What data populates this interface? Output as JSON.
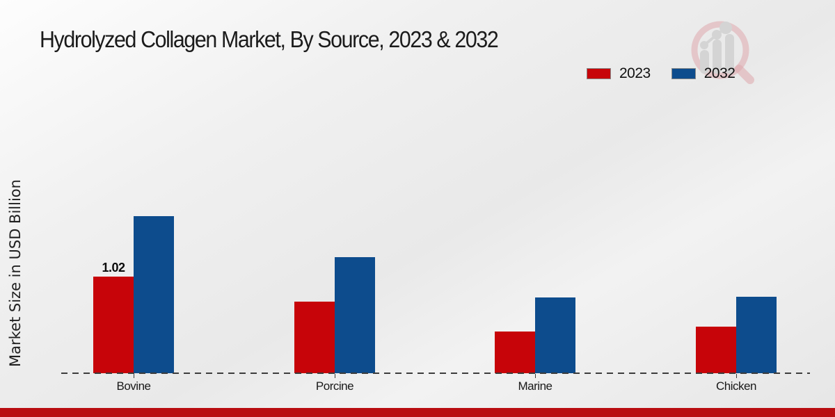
{
  "title": "Hydrolyzed Collagen Market, By Source, 2023 & 2032",
  "y_axis_label": "Market Size in USD Billion",
  "legend": {
    "items": [
      {
        "label": "2023",
        "color": "#c70409"
      },
      {
        "label": "2032",
        "color": "#0d4c8d"
      }
    ]
  },
  "logo": {
    "icon": "magnifier-growth-chart-logo",
    "ring_color": "#dfa8ad",
    "bars_color": "#d4d4d4"
  },
  "footer": {
    "bar_color": "#b90d11"
  },
  "chart_data": {
    "type": "bar",
    "title": "Hydrolyzed Collagen Market, By Source, 2023 & 2032",
    "categories": [
      "Bovine",
      "Porcine",
      "Marine",
      "Chicken"
    ],
    "series": [
      {
        "name": "2023",
        "color": "#c70409",
        "values": [
          1.02,
          0.76,
          0.44,
          0.49
        ],
        "data_labels": [
          "1.02",
          "",
          "",
          ""
        ]
      },
      {
        "name": "2032",
        "color": "#0d4c8d",
        "values": [
          1.66,
          1.23,
          0.8,
          0.81
        ],
        "data_labels": [
          "",
          "",
          "",
          ""
        ]
      }
    ],
    "xlabel": "",
    "ylabel": "Market Size in USD Billion",
    "ylim": [
      0,
      1.8
    ],
    "grid": false,
    "axis_line": "dashed-baseline-only",
    "legend_position": "top-right"
  }
}
